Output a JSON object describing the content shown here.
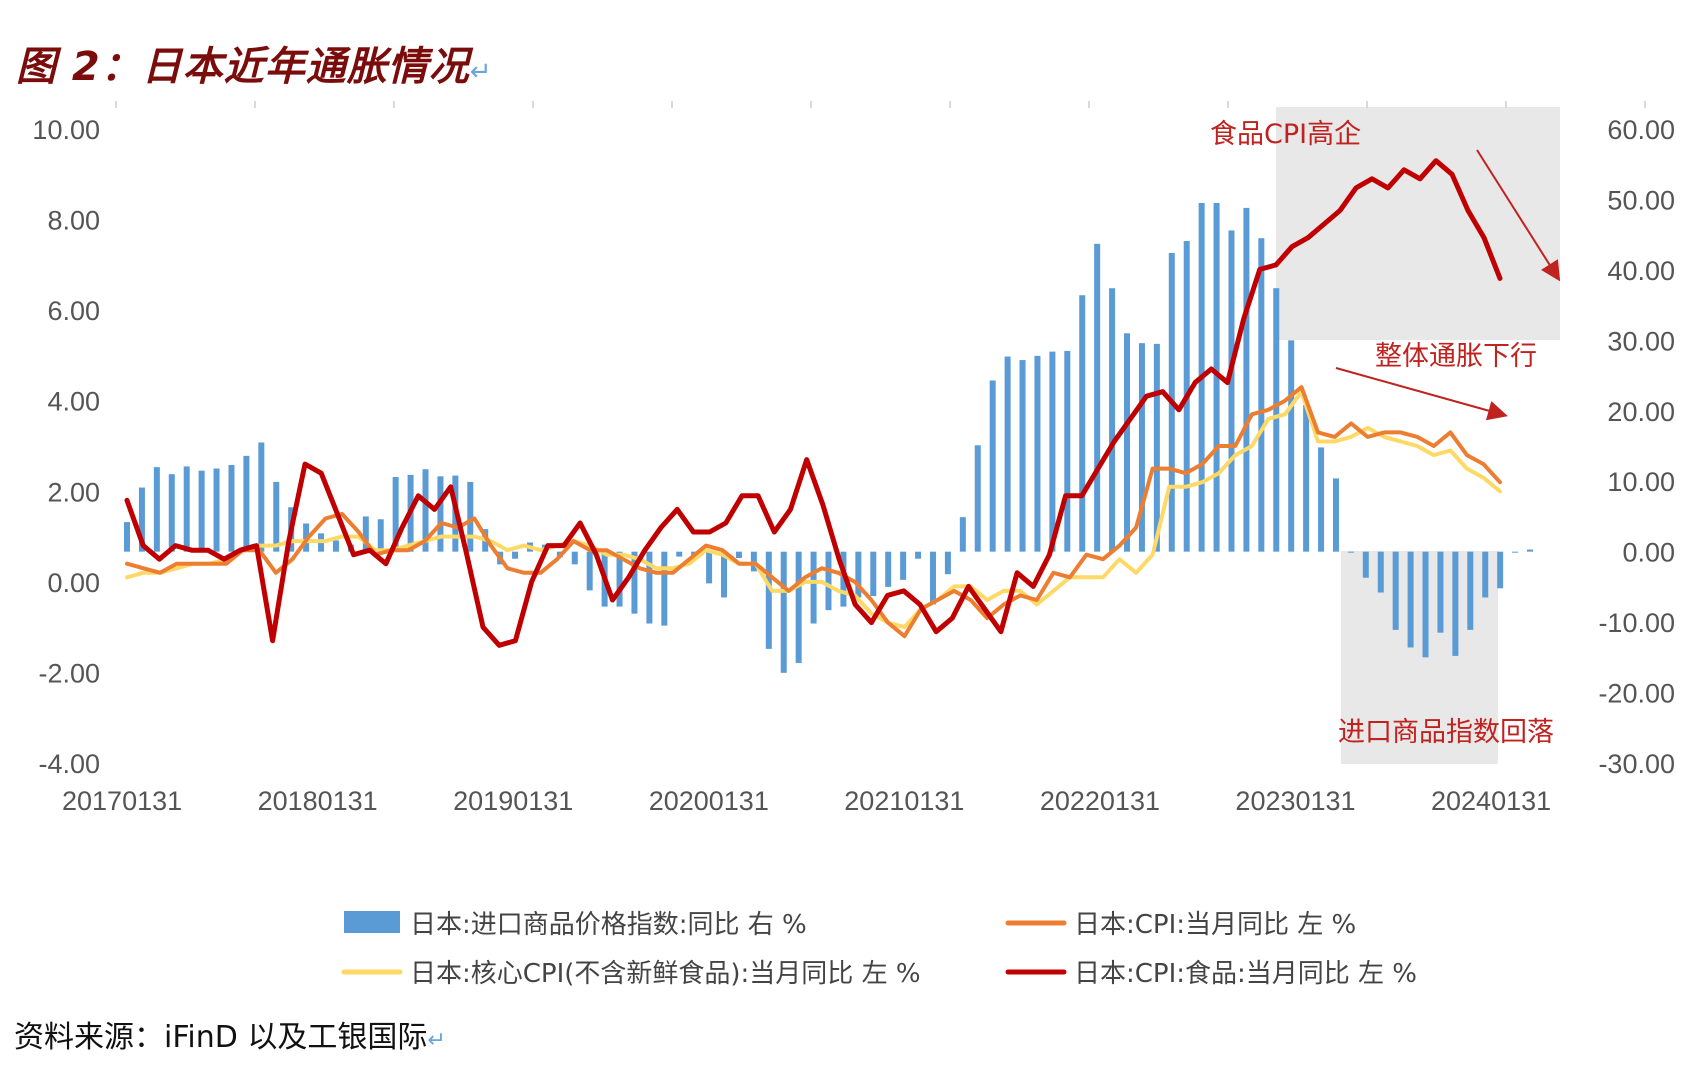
{
  "title": "图 2：日本近年通胀情况",
  "return_mark": "↵",
  "source": "资料来源：iFinD 以及工银国际",
  "colors": {
    "import_bar": "#5b9bd5",
    "cpi": "#ed7d31",
    "core_cpi": "#ffd966",
    "food_cpi": "#c00000",
    "annotation": "#c0221f",
    "highlight": "#e8e8e8"
  },
  "chart_data": {
    "type": "bar+line",
    "x_tick_labels": [
      "20170131",
      "20180131",
      "20190131",
      "20200131",
      "20210131",
      "20220131",
      "20230131",
      "20240131"
    ],
    "x_start": "20170131",
    "x_end": "20240131",
    "y_left": {
      "ylim": [
        -4,
        10
      ],
      "ticks": [
        "10.00",
        "8.00",
        "6.00",
        "4.00",
        "2.00",
        "0.00",
        "-2.00",
        "-4.00"
      ]
    },
    "y_right": {
      "ylim": [
        -30,
        60
      ],
      "ticks": [
        "60.00",
        "50.00",
        "40.00",
        "30.00",
        "20.00",
        "10.00",
        "0.00",
        "-10.00",
        "-20.00",
        "-30.00"
      ]
    },
    "series": [
      {
        "name": "日本:进口商品价格指数:同比 右 %",
        "type": "bar",
        "axis": "right",
        "values": [
          4.2,
          9.1,
          12.0,
          11.0,
          12.1,
          11.5,
          11.8,
          12.3,
          13.6,
          15.5,
          9.9,
          6.3,
          4.0,
          2.6,
          1.6,
          1.0,
          5.0,
          4.6,
          10.6,
          10.9,
          11.7,
          10.7,
          10.8,
          9.9,
          3.2,
          -1.8,
          -1.0,
          1.3,
          1.0,
          -0.8,
          -1.8,
          -5.5,
          -7.8,
          -7.8,
          -8.8,
          -10.2,
          -10.5,
          -0.7,
          -0.9,
          -4.5,
          -6.5,
          -0.9,
          -2.8,
          -13.8,
          -17.2,
          -15.8,
          -10.2,
          -8.3,
          -7.8,
          -6.5,
          -6.3,
          -5.0,
          -4.0,
          -1.0,
          -7.5,
          -3.2,
          4.9,
          15.1,
          24.3,
          27.7,
          27.2,
          27.8,
          28.4,
          28.5,
          36.4,
          43.7,
          37.4,
          31.0,
          29.6,
          29.5,
          42.4,
          44.1,
          49.5,
          49.5,
          45.6,
          48.8,
          44.5,
          37.4,
          30.0,
          20.8,
          14.8,
          10.4,
          0.0,
          -3.7,
          -5.8,
          -11.1,
          -13.6,
          -15.0,
          -11.5,
          -14.8,
          -11.1,
          -6.5,
          -5.2,
          0.0,
          0.3
        ]
      },
      {
        "name": "日本:CPI:当月同比 左 %",
        "type": "line",
        "axis": "left",
        "values": [
          0.4,
          0.3,
          0.2,
          0.4,
          0.4,
          0.4,
          0.4,
          0.7,
          0.7,
          0.2,
          0.5,
          1.0,
          1.4,
          1.5,
          1.1,
          0.6,
          0.7,
          0.7,
          0.9,
          1.3,
          1.2,
          1.4,
          0.8,
          0.3,
          0.2,
          0.2,
          0.5,
          0.9,
          0.7,
          0.7,
          0.5,
          0.3,
          0.2,
          0.2,
          0.5,
          0.8,
          0.7,
          0.4,
          0.4,
          0.1,
          -0.2,
          0.1,
          0.3,
          0.2,
          0.0,
          -0.4,
          -0.9,
          -1.2,
          -0.6,
          -0.4,
          -0.2,
          -0.4,
          -0.8,
          -0.5,
          -0.3,
          -0.4,
          0.2,
          0.1,
          0.6,
          0.5,
          0.8,
          1.2,
          2.5,
          2.5,
          2.4,
          2.6,
          3.0,
          3.0,
          3.7,
          3.8,
          4.0,
          4.3,
          3.3,
          3.2,
          3.5,
          3.2,
          3.3,
          3.3,
          3.2,
          3.0,
          3.3,
          2.8,
          2.6,
          2.2
        ]
      },
      {
        "name": "日本:核心CPI(不含新鲜食品):当月同比 左 %",
        "type": "line",
        "axis": "left",
        "values": [
          0.1,
          0.2,
          0.2,
          0.3,
          0.4,
          0.4,
          0.5,
          0.7,
          0.8,
          0.8,
          0.9,
          0.9,
          0.9,
          1.0,
          1.0,
          0.7,
          0.7,
          0.8,
          0.9,
          1.0,
          1.0,
          1.0,
          0.9,
          0.7,
          0.8,
          0.7,
          0.8,
          0.9,
          0.8,
          0.6,
          0.6,
          0.5,
          0.3,
          0.3,
          0.4,
          0.7,
          0.6,
          0.4,
          0.4,
          -0.2,
          -0.2,
          0.0,
          0.0,
          -0.2,
          -0.3,
          -0.7,
          -0.9,
          -1.0,
          -0.6,
          -0.4,
          -0.1,
          -0.1,
          -0.4,
          -0.2,
          -0.2,
          -0.5,
          -0.2,
          0.1,
          0.1,
          0.1,
          0.5,
          0.2,
          0.6,
          2.1,
          2.1,
          2.2,
          2.4,
          2.8,
          3.0,
          3.6,
          3.7,
          4.2,
          3.1,
          3.1,
          3.2,
          3.4,
          3.2,
          3.1,
          3.0,
          2.8,
          2.9,
          2.5,
          2.3,
          2.0
        ]
      },
      {
        "name": "日本:CPI:食品:当月同比 左 %",
        "type": "line",
        "axis": "left",
        "values": [
          1.8,
          0.8,
          0.5,
          0.8,
          0.7,
          0.7,
          0.5,
          0.7,
          0.8,
          -1.3,
          0.9,
          2.6,
          2.4,
          1.5,
          0.6,
          0.7,
          0.4,
          1.2,
          1.9,
          1.6,
          2.1,
          0.6,
          -1.0,
          -1.4,
          -1.3,
          0.0,
          0.8,
          0.8,
          1.3,
          0.6,
          -0.4,
          0.1,
          0.7,
          1.2,
          1.6,
          1.1,
          1.1,
          1.3,
          1.9,
          1.9,
          1.1,
          1.6,
          2.7,
          1.7,
          0.5,
          -0.5,
          -0.9,
          -0.3,
          -0.2,
          -0.5,
          -1.1,
          -0.8,
          -0.1,
          -0.6,
          -1.1,
          0.2,
          -0.1,
          0.6,
          1.9,
          1.9,
          2.5,
          3.1,
          3.6,
          4.1,
          4.2,
          3.8,
          4.4,
          4.7,
          4.4,
          5.8,
          6.9,
          7.0
        ]
      },
      {
        "name": "日本:CPI:食品:当月同比 左 %",
        "type": "line",
        "axis": "left",
        "segment": "highlight",
        "values": [
          7.0,
          7.4,
          7.6,
          7.9,
          8.2,
          8.7,
          8.9,
          8.7,
          9.1,
          8.9,
          9.3,
          9.0,
          8.2,
          7.6,
          6.7
        ]
      }
    ],
    "legend": {
      "placement": "bottom",
      "entries": [
        "日本:进口商品价格指数:同比 右 %",
        "日本:CPI:当月同比 左 %",
        "日本:核心CPI(不含新鲜食品):当月同比 左 %",
        "日本:CPI:食品:当月同比 左 %"
      ]
    },
    "annotations": [
      "食品CPI高企",
      "整体通胀下行",
      "进口商品指数回落"
    ]
  }
}
